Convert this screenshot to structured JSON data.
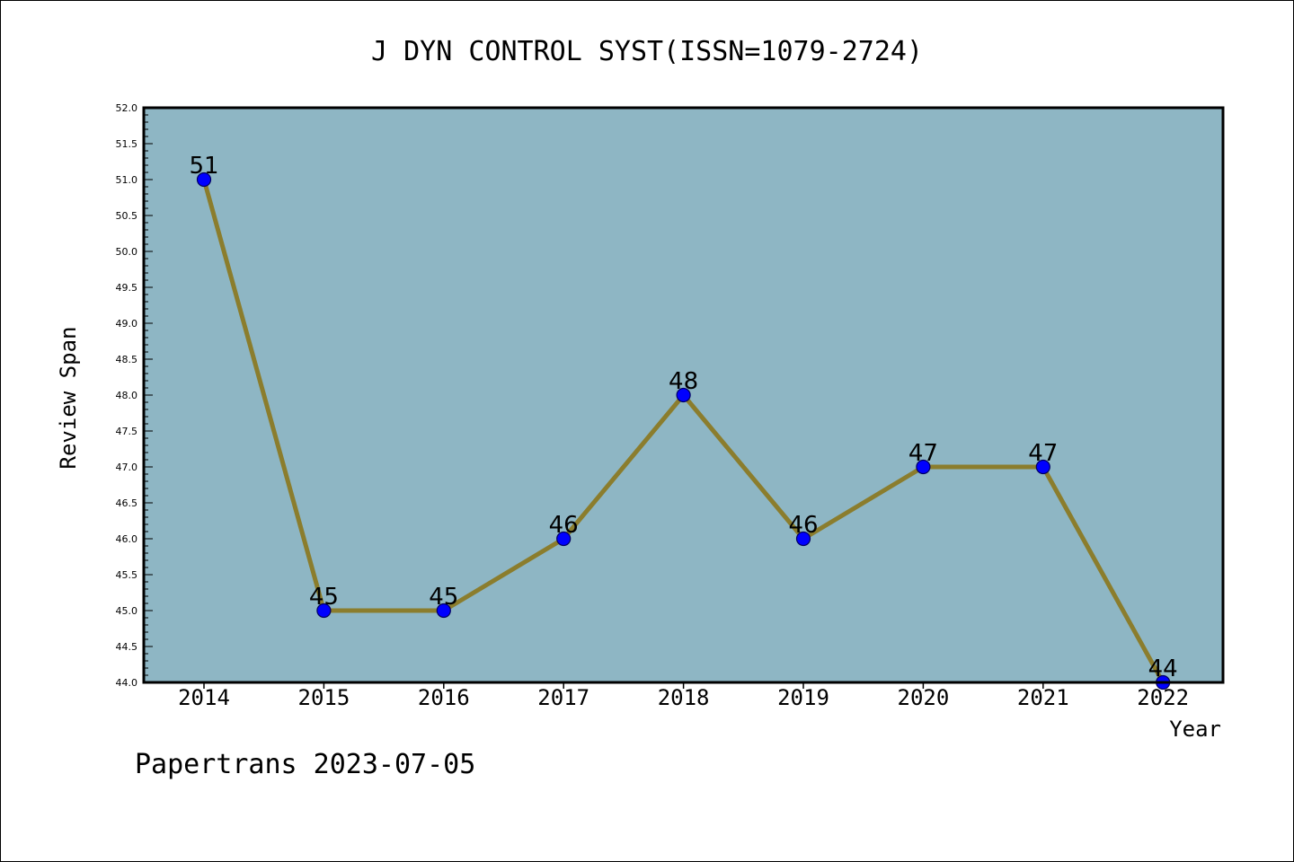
{
  "footer": "Papertrans 2023-07-05",
  "colors": {
    "plot_background": "#8eb6c4",
    "line": "#8b7d2d",
    "marker": "#0000ff",
    "marker_edge": "#000060"
  },
  "chart_data": {
    "type": "line",
    "title": "J DYN CONTROL SYST(ISSN=1079-2724)",
    "xlabel": "Year",
    "ylabel": "Review Span",
    "x": [
      "2014",
      "2015",
      "2016",
      "2017",
      "2018",
      "2019",
      "2020",
      "2021",
      "2022"
    ],
    "series": [
      {
        "values": [
          51,
          45,
          45,
          46,
          48,
          46,
          47,
          47,
          44
        ]
      }
    ],
    "data_labels": [
      "51",
      "45",
      "45",
      "46",
      "48",
      "46",
      "47",
      "47",
      "44"
    ],
    "ylim": [
      44.0,
      52.0
    ],
    "yticks": [
      "44.0",
      "44.5",
      "45.0",
      "45.5",
      "46.0",
      "46.5",
      "47.0",
      "47.5",
      "48.0",
      "48.5",
      "49.0",
      "49.5",
      "50.0",
      "50.5",
      "51.0",
      "51.5",
      "52.0"
    ],
    "grid": false,
    "legend": "none"
  }
}
